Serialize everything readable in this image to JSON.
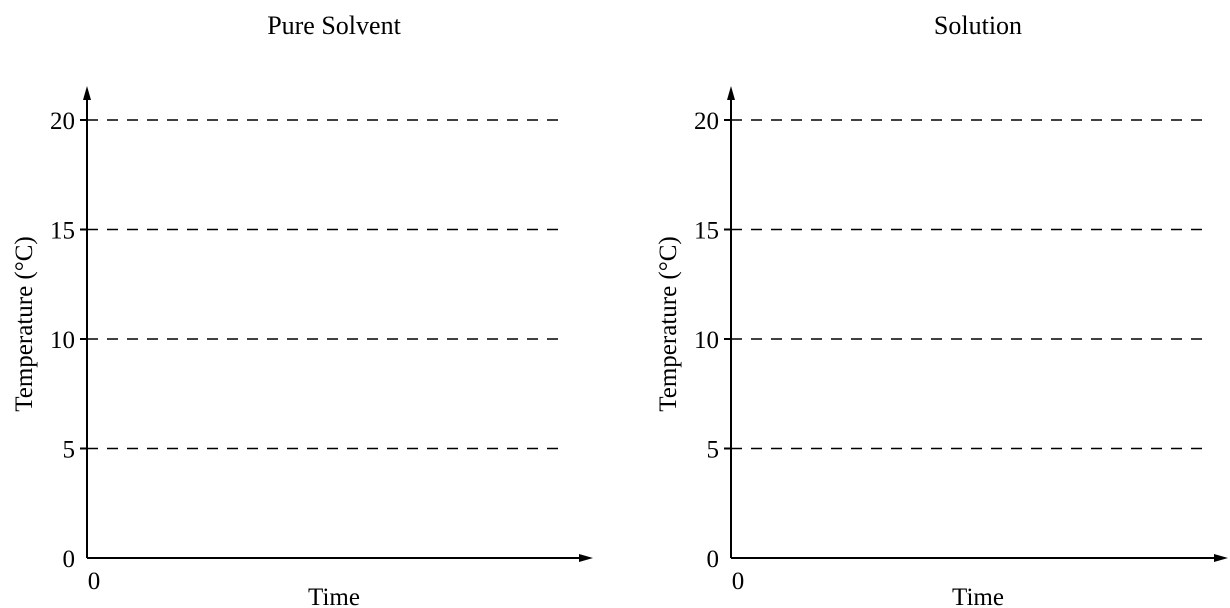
{
  "chart_data": [
    {
      "type": "line",
      "title": "Pure Solvent",
      "xlabel": "Time",
      "ylabel": "Temperature (°C)",
      "x_ticks": [
        "0"
      ],
      "y_ticks": [
        0,
        5,
        10,
        15,
        20
      ],
      "ylim": [
        0,
        21.5
      ],
      "gridlines": "dashed horizontal at 5, 10, 15, 20",
      "series": []
    },
    {
      "type": "line",
      "title": "Solution",
      "xlabel": "Time",
      "ylabel": "Temperature (°C)",
      "x_ticks": [
        "0"
      ],
      "y_ticks": [
        0,
        5,
        10,
        15,
        20
      ],
      "ylim": [
        0,
        21.5
      ],
      "gridlines": "dashed horizontal at 5, 10, 15, 20",
      "series": []
    }
  ]
}
